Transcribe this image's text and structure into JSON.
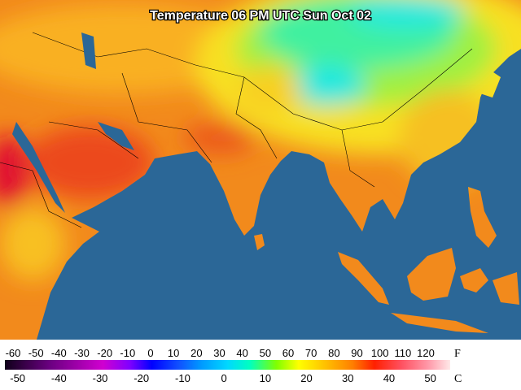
{
  "title": "Temperature 06 PM UTC Sun Oct 02",
  "legend": {
    "fahrenheit": {
      "unit": "F",
      "ticks": [
        -60,
        -50,
        -40,
        -30,
        -20,
        -10,
        0,
        10,
        20,
        30,
        40,
        50,
        60,
        70,
        80,
        90,
        100,
        110,
        120
      ]
    },
    "celsius": {
      "unit": "C",
      "ticks": [
        -50,
        -40,
        -30,
        -20,
        -10,
        0,
        10,
        20,
        30,
        40,
        50
      ]
    }
  }
}
